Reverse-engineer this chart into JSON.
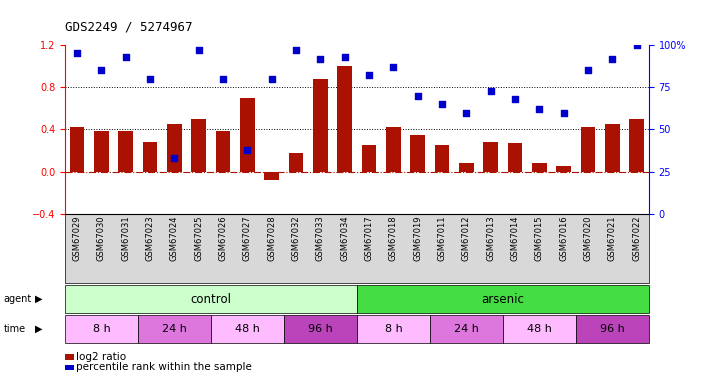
{
  "title": "GDS2249 / 5274967",
  "samples": [
    "GSM67029",
    "GSM67030",
    "GSM67031",
    "GSM67023",
    "GSM67024",
    "GSM67025",
    "GSM67026",
    "GSM67027",
    "GSM67028",
    "GSM67032",
    "GSM67033",
    "GSM67034",
    "GSM67017",
    "GSM67018",
    "GSM67019",
    "GSM67011",
    "GSM67012",
    "GSM67013",
    "GSM67014",
    "GSM67015",
    "GSM67016",
    "GSM67020",
    "GSM67021",
    "GSM67022"
  ],
  "log2_ratio": [
    0.42,
    0.38,
    0.38,
    0.28,
    0.45,
    0.5,
    0.38,
    0.7,
    -0.08,
    0.18,
    0.88,
    1.0,
    0.25,
    0.42,
    0.35,
    0.25,
    0.08,
    0.28,
    0.27,
    0.08,
    0.05,
    0.42,
    0.45,
    0.5
  ],
  "percentile": [
    95,
    85,
    93,
    80,
    33,
    97,
    80,
    38,
    80,
    97,
    92,
    93,
    82,
    87,
    70,
    65,
    60,
    73,
    68,
    62,
    60,
    85,
    92,
    100
  ],
  "bar_color": "#aa1100",
  "dot_color": "#0000cc",
  "ylim_left": [
    -0.4,
    1.2
  ],
  "ylim_right": [
    0,
    100
  ],
  "yticks_left": [
    -0.4,
    0.0,
    0.4,
    0.8,
    1.2
  ],
  "yticks_right": [
    0,
    25,
    50,
    75,
    100
  ],
  "hlines": [
    0.4,
    0.8
  ],
  "agent_groups": [
    {
      "label": "control",
      "start": 0,
      "end": 12,
      "color": "#ccffcc"
    },
    {
      "label": "arsenic",
      "start": 12,
      "end": 24,
      "color": "#44dd44"
    }
  ],
  "time_groups": [
    {
      "label": "8 h",
      "start": 0,
      "end": 3,
      "color": "#ffccff"
    },
    {
      "label": "24 h",
      "start": 3,
      "end": 6,
      "color": "#dd88dd"
    },
    {
      "label": "48 h",
      "start": 6,
      "end": 9,
      "color": "#ffccff"
    },
    {
      "label": "96 h",
      "start": 9,
      "end": 12,
      "color": "#cc44cc"
    },
    {
      "label": "8 h",
      "start": 12,
      "end": 15,
      "color": "#ffccff"
    },
    {
      "label": "24 h",
      "start": 15,
      "end": 18,
      "color": "#dd88dd"
    },
    {
      "label": "48 h",
      "start": 18,
      "end": 21,
      "color": "#ffccff"
    },
    {
      "label": "96 h",
      "start": 21,
      "end": 24,
      "color": "#cc44cc"
    }
  ],
  "legend_bar_label": "log2 ratio",
  "legend_dot_label": "percentile rank within the sample"
}
